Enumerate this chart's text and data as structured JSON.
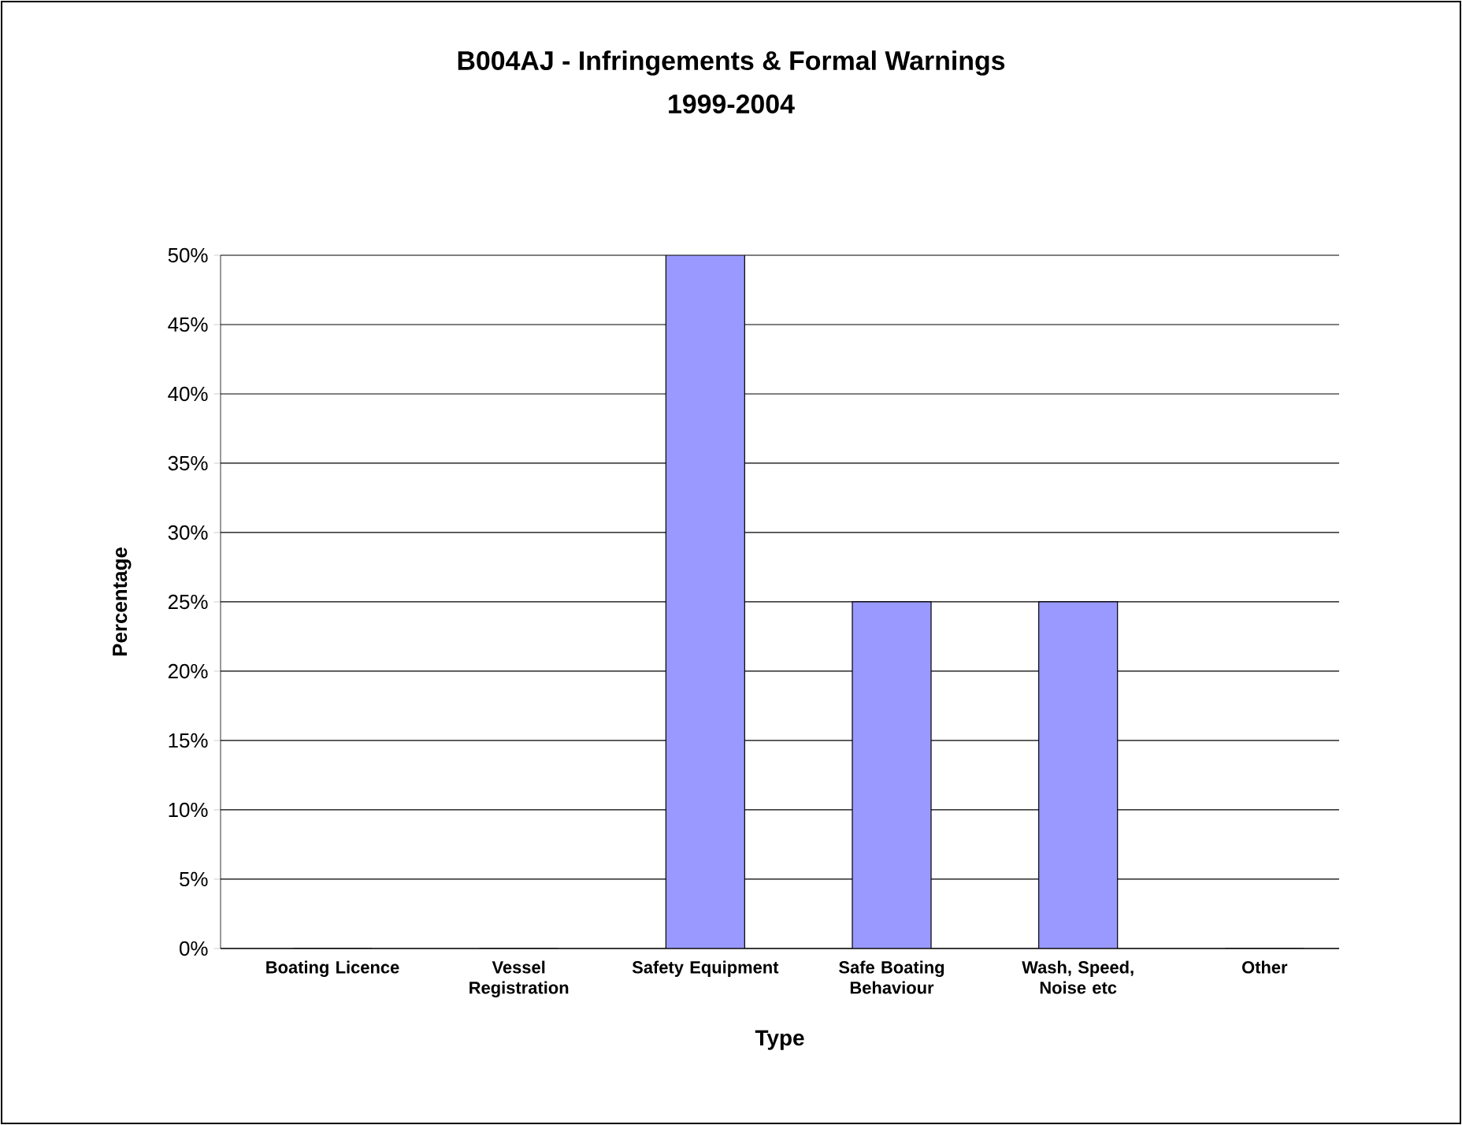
{
  "chart_data": {
    "type": "bar",
    "title": "B004AJ - Infringements & Formal Warnings",
    "subtitle": "1999-2004",
    "xlabel": "Type",
    "ylabel": "Percentage",
    "categories": [
      "Boating Licence",
      "Vessel Registration",
      "Safety Equipment",
      "Safe Boating Behaviour",
      "Wash, Speed, Noise etc",
      "Other"
    ],
    "values": [
      0,
      0,
      50,
      25,
      25,
      0
    ],
    "color": "#9999ff",
    "ylim": [
      0,
      50
    ],
    "yticks": [
      {
        "value": 0,
        "label": "0%"
      },
      {
        "value": 5,
        "label": "5%"
      },
      {
        "value": 10,
        "label": "10%"
      },
      {
        "value": 15,
        "label": "15%"
      },
      {
        "value": 20,
        "label": "20%"
      },
      {
        "value": 25,
        "label": "25%"
      },
      {
        "value": 30,
        "label": "30%"
      },
      {
        "value": 35,
        "label": "35%"
      },
      {
        "value": 40,
        "label": "40%"
      },
      {
        "value": 45,
        "label": "45%"
      },
      {
        "value": 50,
        "label": "50%"
      }
    ],
    "grid": "y"
  }
}
